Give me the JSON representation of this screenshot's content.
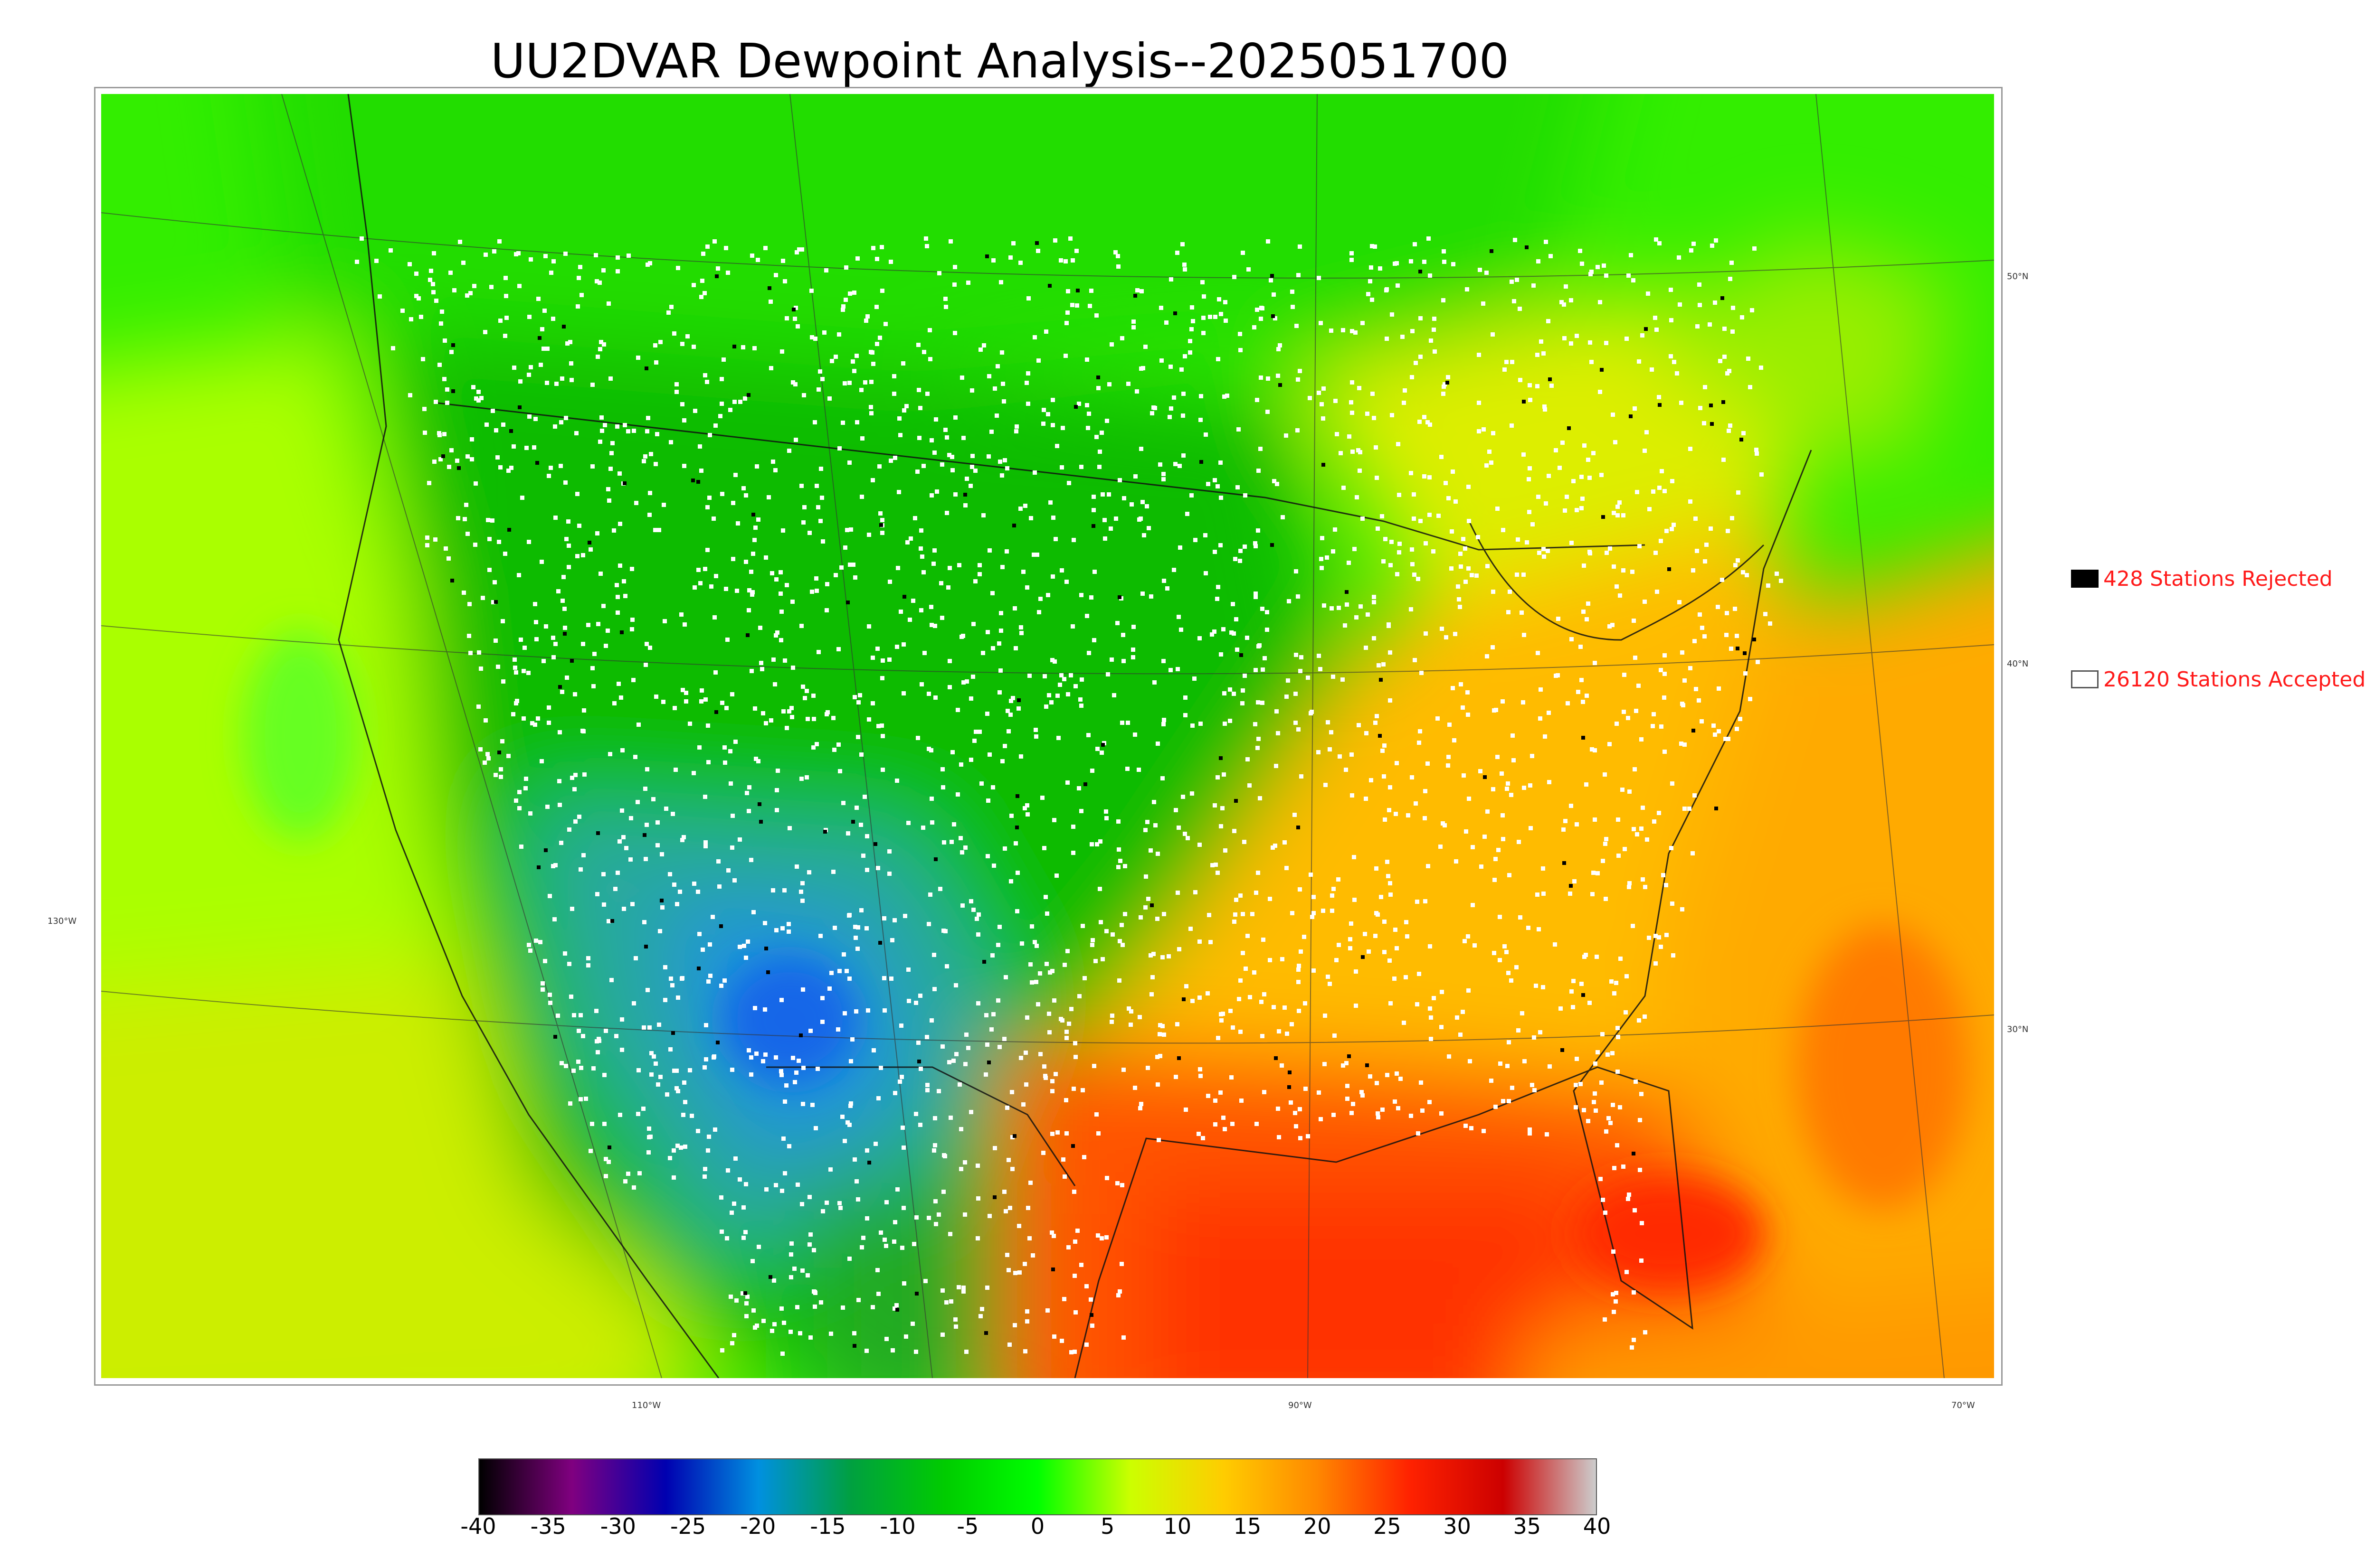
{
  "title": "UU2DVAR Dewpoint Analysis--2025051700",
  "longitude_labels": [
    "130°W",
    "110°W",
    "90°W",
    "70°W"
  ],
  "latitude_labels": [
    "50°N",
    "40°N",
    "30°N"
  ],
  "legend": {
    "rejected": {
      "label": "428 Stations Rejected",
      "swatch_color": "#000000"
    },
    "accepted": {
      "label": "26120 Stations Accepted",
      "swatch_color": "#ffffff"
    }
  },
  "colorbar": {
    "ticks": [
      "-40",
      "-35",
      "-30",
      "-25",
      "-20",
      "-15",
      "-10",
      "-5",
      "0",
      "5",
      "10",
      "15",
      "20",
      "25",
      "30",
      "35",
      "40"
    ],
    "colors": [
      "#000000",
      "#800080",
      "#0000b0",
      "#0090e0",
      "#00a040",
      "#00cc00",
      "#00ff00",
      "#ccff00",
      "#ffcc00",
      "#ff8800",
      "#ff2200",
      "#cc0000",
      "#cccccc"
    ]
  }
}
